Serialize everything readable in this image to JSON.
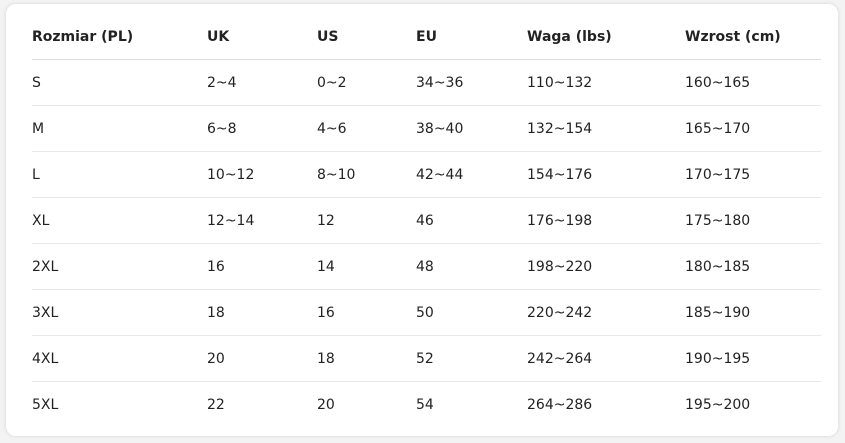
{
  "table": {
    "header": [
      "Rozmiar (PL)",
      "UK",
      "US",
      "EU",
      "Waga (lbs)",
      "Wzrost (cm)"
    ],
    "rows": [
      [
        "S",
        "2~4",
        "0~2",
        "34~36",
        "110~132",
        "160~165"
      ],
      [
        "M",
        "6~8",
        "4~6",
        "38~40",
        "132~154",
        "165~170"
      ],
      [
        "L",
        "10~12",
        "8~10",
        "42~44",
        "154~176",
        "170~175"
      ],
      [
        "XL",
        "12~14",
        "12",
        "46",
        "176~198",
        "175~180"
      ],
      [
        "2XL",
        "16",
        "14",
        "48",
        "198~220",
        "180~185"
      ],
      [
        "3XL",
        "18",
        "16",
        "50",
        "220~242",
        "185~190"
      ],
      [
        "4XL",
        "20",
        "18",
        "52",
        "242~264",
        "190~195"
      ],
      [
        "5XL",
        "22",
        "20",
        "54",
        "264~286",
        "195~200"
      ]
    ]
  }
}
